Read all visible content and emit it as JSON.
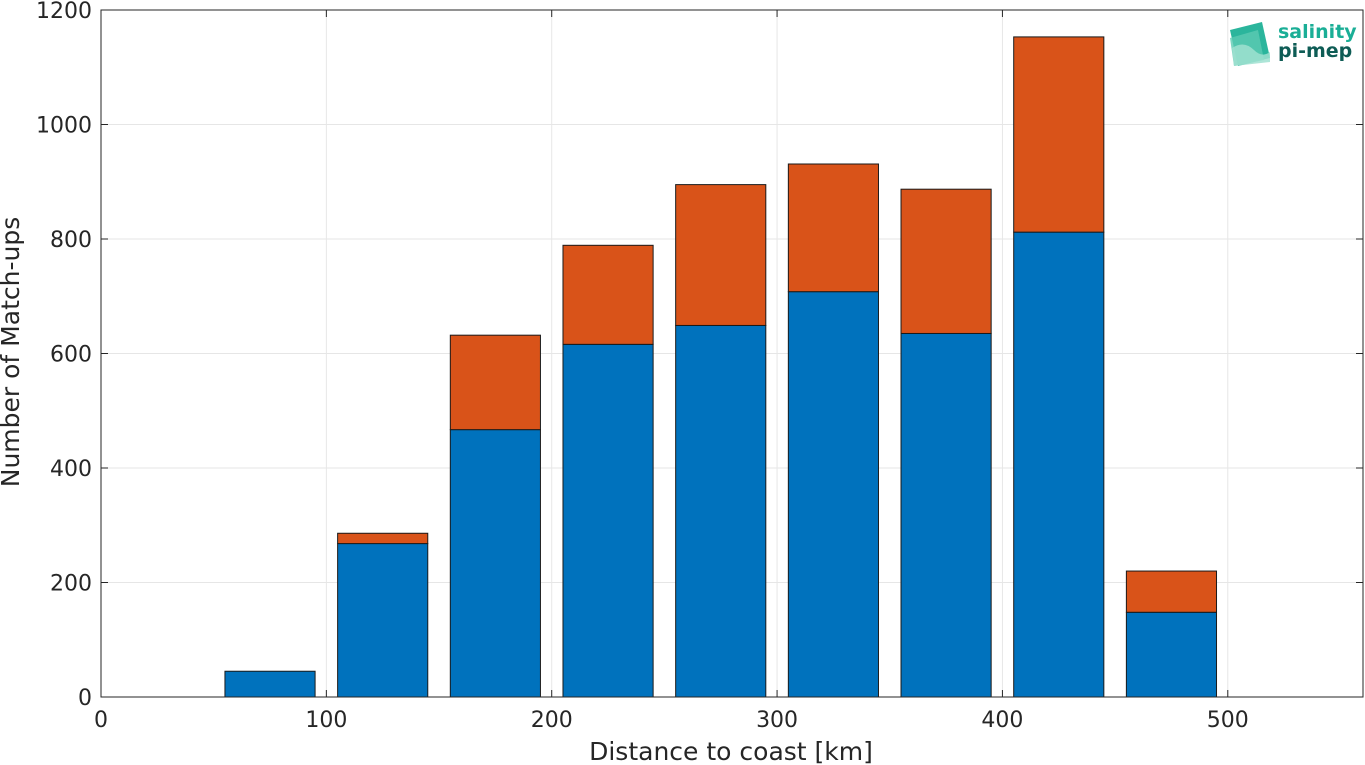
{
  "chart_data": {
    "type": "bar",
    "stacked": true,
    "x": [
      75,
      125,
      175,
      225,
      275,
      325,
      375,
      425,
      475
    ],
    "bar_width": 40,
    "series": [
      {
        "values": [
          45,
          268,
          467,
          616,
          649,
          708,
          635,
          812,
          148
        ],
        "color": "#0072BD"
      },
      {
        "values": [
          0,
          18,
          165,
          173,
          246,
          223,
          252,
          341,
          72
        ],
        "color": "#D95319"
      }
    ],
    "xlabel": "Distance to coast [km]",
    "ylabel": "Number of Match-ups",
    "xlim": [
      0,
      560
    ],
    "ylim": [
      0,
      1200
    ],
    "xticks": [
      0,
      100,
      200,
      300,
      400,
      500
    ],
    "yticks": [
      0,
      200,
      400,
      600,
      800,
      1000,
      1200
    ],
    "grid": true,
    "legend": "none"
  },
  "logo": {
    "line1": "salinity",
    "line2": "pi-mep",
    "color1": "#1AAE96",
    "color2": "#0E5C55"
  }
}
